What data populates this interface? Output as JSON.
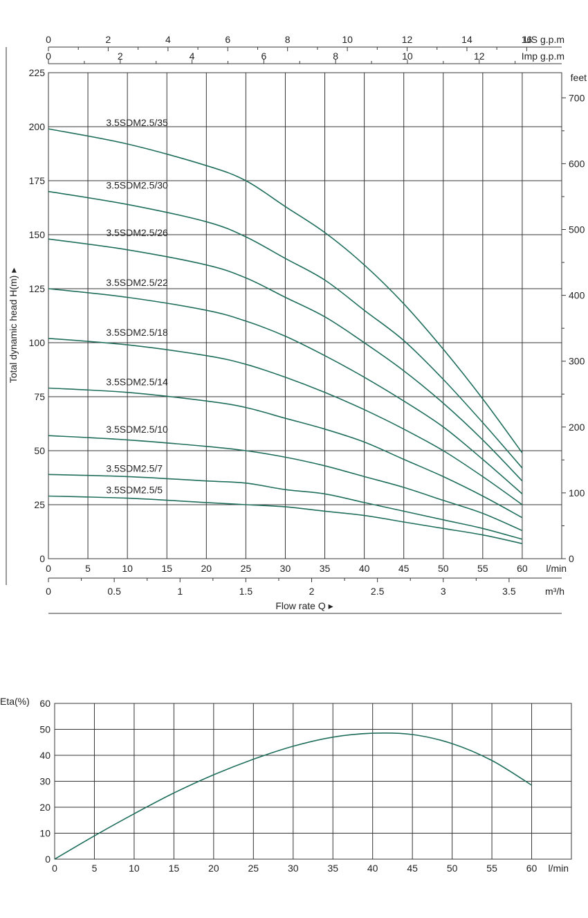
{
  "colors": {
    "curve": "#1f6e5c",
    "grid": "#333333",
    "text": "#222222"
  },
  "chart_data": [
    {
      "type": "line",
      "title": "",
      "xlabel": "Flow  rate Q ▸",
      "ylabel": "Total dynamic head H(m) ▸",
      "x_unit": "l/min",
      "xlim": [
        0,
        65
      ],
      "ylim": [
        0,
        225
      ],
      "x_ticks": [
        0,
        5,
        10,
        15,
        20,
        25,
        30,
        35,
        40,
        45,
        50,
        55,
        60
      ],
      "y_ticks": [
        0,
        25,
        50,
        75,
        100,
        125,
        150,
        175,
        200,
        225
      ],
      "grid": true,
      "secondary_axes": {
        "us_gpm": {
          "unit": "US g.p.m",
          "ticks": [
            0,
            2,
            4,
            6,
            8,
            10,
            12,
            14,
            16
          ]
        },
        "imp_gpm": {
          "unit": "Imp g.p.m",
          "ticks": [
            0,
            2,
            4,
            6,
            8,
            10,
            12
          ]
        },
        "feet": {
          "unit": "feet",
          "ticks": [
            0,
            100,
            200,
            300,
            400,
            500,
            600,
            700
          ]
        },
        "m3h": {
          "unit": "m³/h",
          "ticks": [
            0,
            0.5,
            1,
            1.5,
            2,
            2.5,
            3,
            3.5
          ]
        }
      },
      "series": [
        {
          "name": "3.5SDM2.5/35",
          "points": [
            [
              0,
              199
            ],
            [
              10,
              192
            ],
            [
              20,
              182
            ],
            [
              25,
              175
            ],
            [
              30,
              163
            ],
            [
              35,
              151
            ],
            [
              40,
              136
            ],
            [
              45,
              118
            ],
            [
              50,
              97
            ],
            [
              55,
              74
            ],
            [
              60,
              49
            ]
          ]
        },
        {
          "name": "3.5SDM2.5/30",
          "points": [
            [
              0,
              170
            ],
            [
              10,
              164
            ],
            [
              20,
              156
            ],
            [
              25,
              149
            ],
            [
              30,
              139
            ],
            [
              35,
              129
            ],
            [
              40,
              115
            ],
            [
              45,
              101
            ],
            [
              50,
              83
            ],
            [
              55,
              63
            ],
            [
              60,
              42
            ]
          ]
        },
        {
          "name": "3.5SDM2.5/26",
          "points": [
            [
              0,
              148
            ],
            [
              10,
              143
            ],
            [
              20,
              136
            ],
            [
              25,
              130
            ],
            [
              30,
              121
            ],
            [
              35,
              112
            ],
            [
              40,
              100
            ],
            [
              45,
              87
            ],
            [
              50,
              72
            ],
            [
              55,
              55
            ],
            [
              60,
              36
            ]
          ]
        },
        {
          "name": "3.5SDM2.5/22",
          "points": [
            [
              0,
              125
            ],
            [
              10,
              121
            ],
            [
              20,
              115
            ],
            [
              25,
              110
            ],
            [
              30,
              103
            ],
            [
              35,
              94
            ],
            [
              40,
              84
            ],
            [
              45,
              73
            ],
            [
              50,
              61
            ],
            [
              55,
              46
            ],
            [
              60,
              30
            ]
          ]
        },
        {
          "name": "3.5SDM2.5/18",
          "points": [
            [
              0,
              102
            ],
            [
              10,
              99
            ],
            [
              20,
              94
            ],
            [
              25,
              90
            ],
            [
              30,
              84
            ],
            [
              35,
              77
            ],
            [
              40,
              69
            ],
            [
              45,
              60
            ],
            [
              50,
              50
            ],
            [
              55,
              38
            ],
            [
              60,
              25
            ]
          ]
        },
        {
          "name": "3.5SDM2.5/14",
          "points": [
            [
              0,
              79
            ],
            [
              10,
              77
            ],
            [
              20,
              73
            ],
            [
              25,
              70
            ],
            [
              30,
              65
            ],
            [
              35,
              60
            ],
            [
              40,
              54
            ],
            [
              45,
              46
            ],
            [
              50,
              38
            ],
            [
              55,
              29
            ],
            [
              60,
              19
            ]
          ]
        },
        {
          "name": "3.5SDM2.5/10",
          "points": [
            [
              0,
              57
            ],
            [
              10,
              55
            ],
            [
              20,
              52
            ],
            [
              25,
              50
            ],
            [
              30,
              47
            ],
            [
              35,
              43
            ],
            [
              40,
              38
            ],
            [
              45,
              33
            ],
            [
              50,
              27
            ],
            [
              55,
              21
            ],
            [
              60,
              13
            ]
          ]
        },
        {
          "name": "3.5SDM2.5/7",
          "points": [
            [
              0,
              39
            ],
            [
              10,
              38
            ],
            [
              20,
              36
            ],
            [
              25,
              35
            ],
            [
              30,
              32
            ],
            [
              35,
              30
            ],
            [
              40,
              26
            ],
            [
              45,
              22
            ],
            [
              50,
              18
            ],
            [
              55,
              14
            ],
            [
              60,
              9
            ]
          ]
        },
        {
          "name": "3.5SDM2.5/5",
          "points": [
            [
              0,
              29
            ],
            [
              10,
              28
            ],
            [
              20,
              26
            ],
            [
              25,
              25
            ],
            [
              30,
              24
            ],
            [
              35,
              22
            ],
            [
              40,
              20
            ],
            [
              45,
              17
            ],
            [
              50,
              14
            ],
            [
              55,
              11
            ],
            [
              60,
              7
            ]
          ]
        }
      ]
    },
    {
      "type": "line",
      "title": "",
      "xlabel": "",
      "ylabel": "Eta(%)",
      "x_unit": "l/min",
      "xlim": [
        0,
        65
      ],
      "ylim": [
        0,
        60
      ],
      "x_ticks": [
        0,
        5,
        10,
        15,
        20,
        25,
        30,
        35,
        40,
        45,
        50,
        55,
        60
      ],
      "y_ticks": [
        0,
        10,
        20,
        30,
        40,
        50,
        60
      ],
      "grid": true,
      "series": [
        {
          "name": "",
          "points": [
            [
              0,
              0
            ],
            [
              5,
              9
            ],
            [
              10,
              17.5
            ],
            [
              15,
              25.5
            ],
            [
              20,
              32.5
            ],
            [
              25,
              38.5
            ],
            [
              30,
              43.5
            ],
            [
              35,
              47
            ],
            [
              40,
              48.5
            ],
            [
              45,
              48
            ],
            [
              50,
              44.5
            ],
            [
              55,
              38
            ],
            [
              60,
              28.5
            ]
          ]
        }
      ]
    }
  ]
}
